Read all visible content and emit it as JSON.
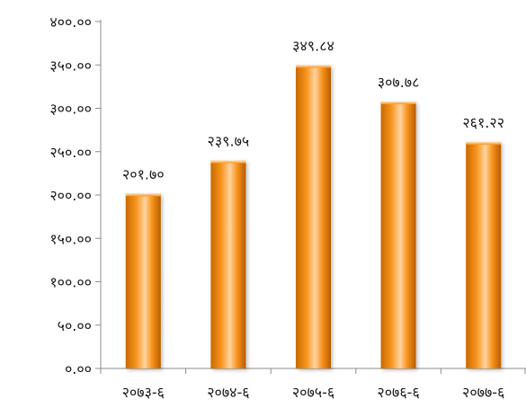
{
  "chart_data": {
    "type": "bar",
    "title": "",
    "xlabel": "",
    "ylabel": "",
    "categories": [
      "२०७३-६",
      "२०७४-६",
      "२०७५-६",
      "२०७६-६",
      "२०७७-६"
    ],
    "values": [
      201.7,
      239.75,
      349.84,
      307.78,
      261.22
    ],
    "data_labels": [
      "२०१.७०",
      "२३९.७५",
      "३४९.८४",
      "३०७.७८",
      "२६१.२२"
    ],
    "ylim": [
      0,
      400
    ],
    "yticks": [
      0,
      50,
      100,
      150,
      200,
      250,
      300,
      350,
      400
    ],
    "ytick_labels": [
      "०.००",
      "५०.००",
      "१००.००",
      "१५०.००",
      "२००.००",
      "२५०.००",
      "३००.००",
      "३५०.००",
      "४००.००"
    ],
    "grid": false,
    "legend": "none",
    "colors": {
      "bar_light": "#ffc98a",
      "bar_mid": "#f7941d",
      "bar_dark": "#b85c00",
      "axis": "#8c8c8c",
      "text": "#1a1a1a"
    }
  }
}
